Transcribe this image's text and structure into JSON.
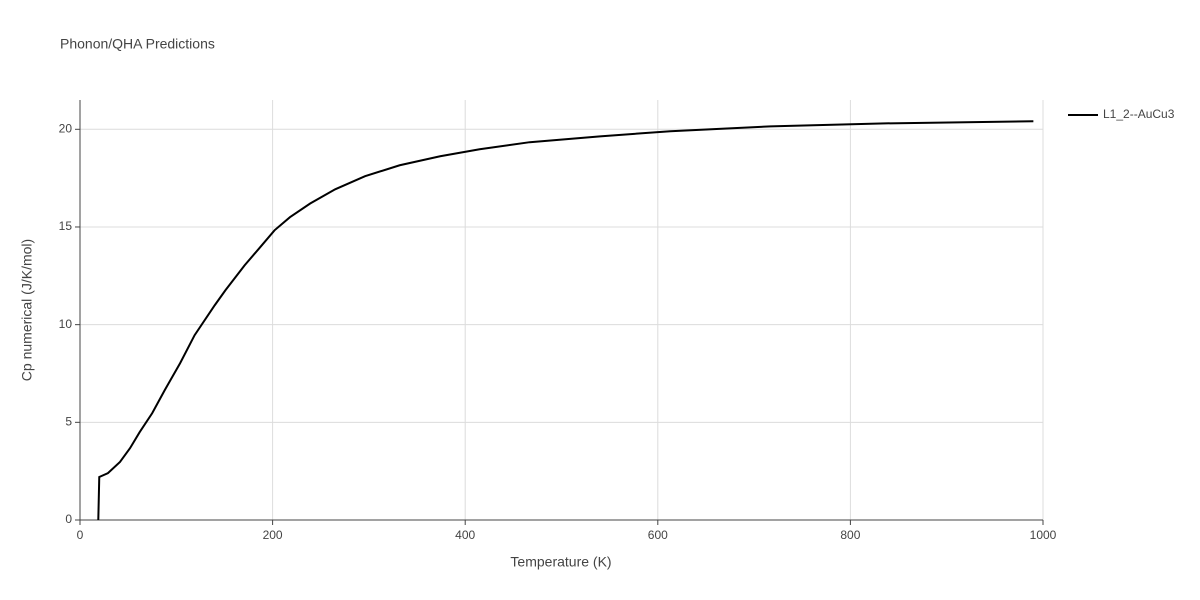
{
  "chart_data": {
    "type": "line",
    "title": "Phonon/QHA Predictions",
    "x_label": "Temperature (K)",
    "y_label": "Cp numerical (J/K/mol)",
    "x": [
      19,
      20,
      29,
      41.5,
      52,
      62,
      75,
      88,
      104,
      119,
      140,
      151,
      171,
      187,
      202,
      218,
      239,
      265,
      296,
      332,
      374,
      415,
      467,
      540,
      613,
      717,
      831,
      990
    ],
    "series": [
      {
        "name": "L1_2--AuCu3",
        "color": "#000000",
        "values": [
          0,
          2.2,
          2.4,
          2.97,
          3.68,
          4.5,
          5.47,
          6.65,
          8.03,
          9.46,
          11.0,
          11.76,
          13.04,
          13.96,
          14.83,
          15.5,
          16.2,
          16.93,
          17.6,
          18.16,
          18.62,
          18.98,
          19.34,
          19.64,
          19.9,
          20.15,
          20.3,
          20.41
        ]
      }
    ],
    "xlim": [
      0,
      1000
    ],
    "xticks": [
      0,
      200,
      400,
      600,
      800,
      1000
    ],
    "ylim": [
      0,
      21.5
    ],
    "yticks": [
      0,
      5,
      10,
      15,
      20
    ],
    "grid": true,
    "legend": "top-right"
  }
}
